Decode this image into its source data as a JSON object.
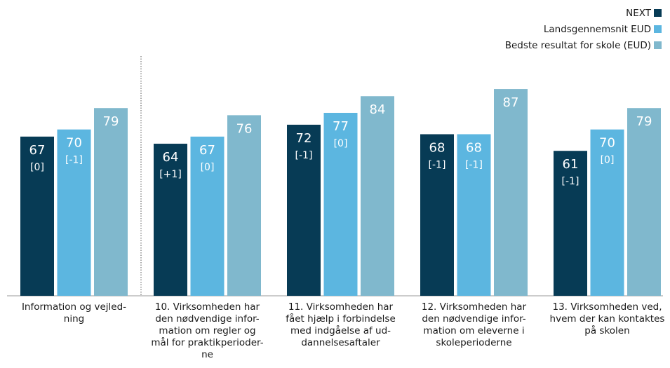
{
  "chart_data": {
    "type": "bar",
    "categories": [
      [
        "Information og vejled-",
        "ning"
      ],
      [
        "10. Virksomheden har",
        "den nødvendige infor-",
        "mation om regler og",
        "mål for praktikperioder-",
        "ne"
      ],
      [
        "11. Virksomheden har",
        "fået hjælp i forbindelse",
        "med indgåelse af ud-",
        "dannelsesaftaler"
      ],
      [
        "12. Virksomheden har",
        "den nødvendige infor-",
        "mation om eleverne i",
        "skoleperioderne"
      ],
      [
        "13. Virksomheden ved,",
        "hvem der kan kontaktes",
        "på skolen"
      ]
    ],
    "series": [
      {
        "name": "NEXT",
        "color": "#073b55",
        "values": [
          67,
          64,
          72,
          68,
          61
        ],
        "changes": [
          "[0]",
          "[+1]",
          "[-1]",
          "[-1]",
          "[-1]"
        ]
      },
      {
        "name": "Landsgennemsnit EUD",
        "color": "#5cb6e0",
        "values": [
          70,
          67,
          77,
          68,
          70
        ],
        "changes": [
          "[-1]",
          "[0]",
          "[0]",
          "[-1]",
          "[0]"
        ]
      },
      {
        "name": "Bedste resultat for skole (EUD)",
        "color": "#80b8cd",
        "values": [
          79,
          76,
          84,
          87,
          79
        ]
      }
    ],
    "ylim": [
      0,
      100
    ],
    "legend": "top-right"
  }
}
